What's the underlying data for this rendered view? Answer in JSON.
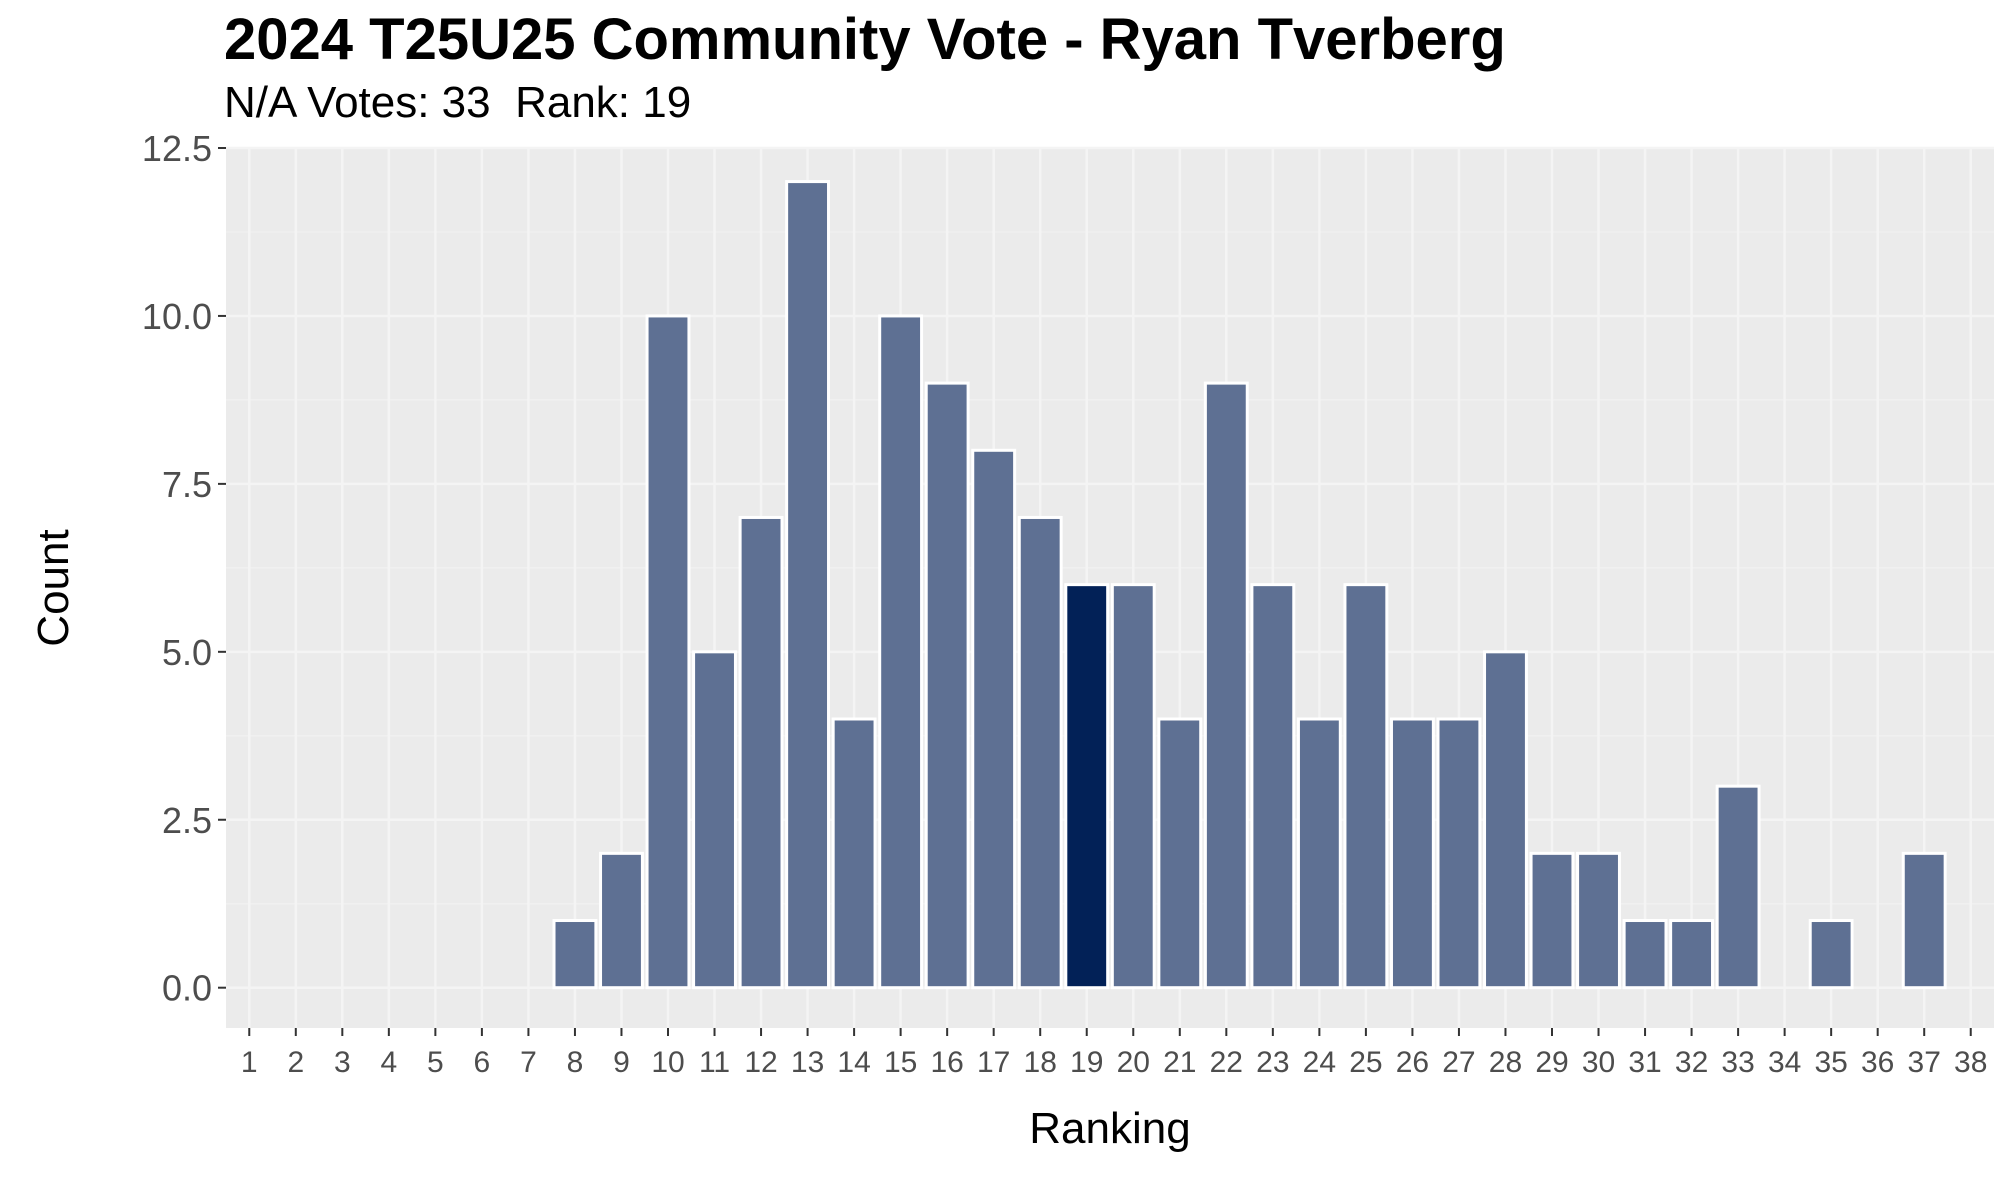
{
  "title": "2024 T25U25 Community Vote - Ryan Tverberg",
  "subtitle": "N/A Votes: 33  Rank: 19",
  "colors": {
    "panel_background": "#ebebeb",
    "grid_major": "#f4f4f4",
    "grid_minor": "#f0f0f0",
    "bar_fill": "#5e7093",
    "bar_highlight": "#022157",
    "bar_outline": "#ffffff",
    "tick_text": "#4d4d4d"
  },
  "chart_data": {
    "type": "bar",
    "title": "2024 T25U25 Community Vote - Ryan Tverberg",
    "subtitle": "N/A Votes: 33  Rank: 19",
    "xlabel": "Ranking",
    "ylabel": "Count",
    "categories": [
      "1",
      "2",
      "3",
      "4",
      "5",
      "6",
      "7",
      "8",
      "9",
      "10",
      "11",
      "12",
      "13",
      "14",
      "15",
      "16",
      "17",
      "18",
      "19",
      "20",
      "21",
      "22",
      "23",
      "24",
      "25",
      "26",
      "27",
      "28",
      "29",
      "30",
      "31",
      "32",
      "33",
      "34",
      "35",
      "36",
      "37",
      "38"
    ],
    "values": [
      0,
      0,
      0,
      0,
      0,
      0,
      0,
      1,
      2,
      10,
      5,
      7,
      12,
      4,
      10,
      9,
      8,
      7,
      6,
      6,
      4,
      9,
      6,
      4,
      6,
      4,
      4,
      5,
      2,
      2,
      1,
      1,
      3,
      0,
      1,
      0,
      2,
      0
    ],
    "highlight_category": "19",
    "ylim": [
      -0.6,
      12.5
    ],
    "yticks": [
      0,
      2.5,
      5,
      7.5,
      10,
      12.5
    ],
    "ytick_labels": [
      "0.0",
      "2.5",
      "5.0",
      "7.5",
      "10.0",
      "12.5"
    ],
    "grid": true,
    "legend": "none"
  }
}
